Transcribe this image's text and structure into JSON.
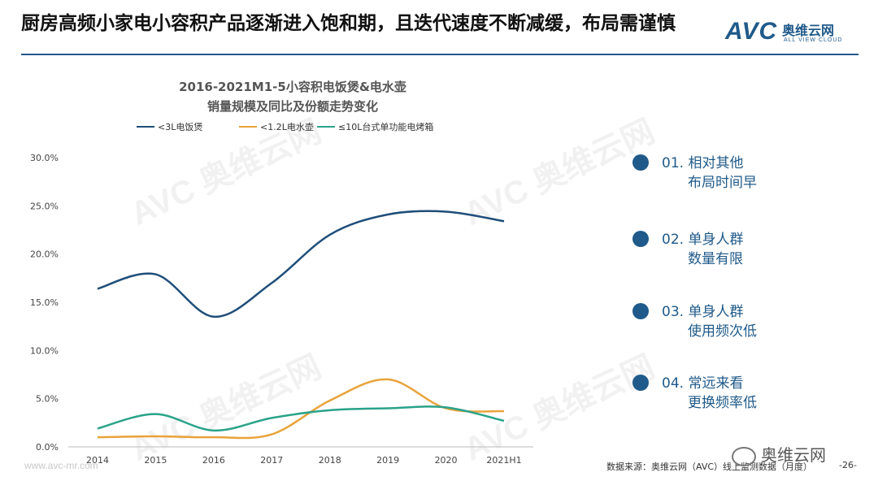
{
  "slide": {
    "title": "厨房高频小家电小容积产品逐渐进入饱和期，且迭代速度不断减缓，布局需谨慎"
  },
  "logo": {
    "mark": "AVC",
    "cn": "奥维云网",
    "en": "ALL VIEW CLOUD"
  },
  "watermark": {
    "mark": "AVC 奥维云网",
    "en": "ALL VIEW CLOUD"
  },
  "reasons": [
    {
      "line1": "01. 相对其他",
      "line2": "布局时间早"
    },
    {
      "line1": "02. 单身人群",
      "line2": "数量有限"
    },
    {
      "line1": "03. 单身人群",
      "line2": "使用频次低"
    },
    {
      "line1": "04. 常远来看",
      "line2": "更换频率低"
    }
  ],
  "footer": {
    "url": "www.avc-mr.com",
    "source": "数据来源：奥维云网（AVC）线上监测数据（月度）",
    "wechat": "奥维云网",
    "page": "-26-"
  },
  "colors": {
    "accent": "#1f5a8a",
    "series1": "#1f4e79",
    "series2": "#e8a33a",
    "series3": "#2aa38a"
  },
  "chart_data": {
    "type": "line",
    "title": "2016-2021M1-5小容积电饭煲&电水壶",
    "subtitle": "销量规模及同比及份额走势变化",
    "xlabel": "",
    "ylabel": "",
    "categories": [
      "2014",
      "2015",
      "2016",
      "2017",
      "2018",
      "2019",
      "2020",
      "2021H1"
    ],
    "ylim": [
      0,
      30
    ],
    "yticks": [
      "0.0%",
      "5.0%",
      "10.0%",
      "15.0%",
      "20.0%",
      "25.0%",
      "30.0%"
    ],
    "legend_position": "top-left",
    "grid": false,
    "series": [
      {
        "name": "<3L电饭煲",
        "values": [
          16.4,
          17.9,
          13.5,
          17.0,
          22.0,
          24.1,
          24.4,
          23.4
        ]
      },
      {
        "name": "<1.2L电水壶",
        "values": [
          1.0,
          1.1,
          1.0,
          1.3,
          4.8,
          7.0,
          4.0,
          3.7
        ]
      },
      {
        "name": "≤10L台式单功能电烤箱",
        "values": [
          1.9,
          3.4,
          1.7,
          3.0,
          3.8,
          4.0,
          4.1,
          2.7
        ]
      }
    ]
  }
}
